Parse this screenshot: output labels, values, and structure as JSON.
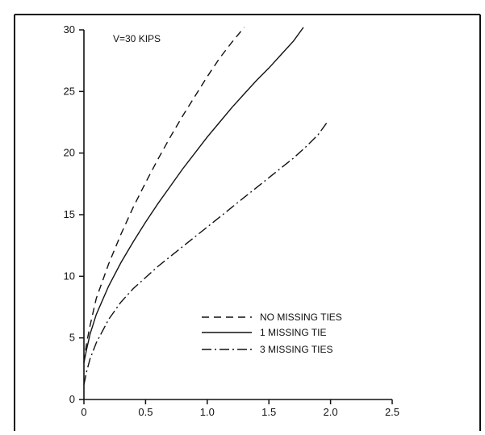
{
  "chart_data": {
    "type": "line",
    "title": "",
    "annotation": "V=30 KIPS",
    "xlabel": "",
    "ylabel": "",
    "xlim": [
      0,
      2.5
    ],
    "ylim": [
      0,
      30
    ],
    "x_ticks": [
      0,
      0.5,
      1.0,
      1.5,
      2.0,
      2.5
    ],
    "x_tick_labels": [
      "0",
      "0.5",
      "1.0",
      "1.5",
      "2.0",
      "2.5"
    ],
    "y_ticks": [
      0,
      5,
      10,
      15,
      20,
      25,
      30
    ],
    "y_tick_labels": [
      "0",
      "5",
      "10",
      "15",
      "20",
      "25",
      "30"
    ],
    "grid": false,
    "legend_position": "lower-right",
    "series": [
      {
        "name": "NO MISSING TIES",
        "style": "dashed",
        "x": [
          0,
          0.02,
          0.05,
          0.1,
          0.2,
          0.3,
          0.4,
          0.5,
          0.6,
          0.7,
          0.8,
          0.9,
          1.0,
          1.1,
          1.2,
          1.3
        ],
        "y": [
          3.0,
          4.5,
          6.0,
          8.2,
          11.0,
          13.4,
          15.6,
          17.6,
          19.5,
          21.3,
          23.0,
          24.6,
          26.2,
          27.7,
          29.0,
          30.2
        ]
      },
      {
        "name": "1 MISSING TIE",
        "style": "solid",
        "x": [
          0,
          0.02,
          0.05,
          0.1,
          0.2,
          0.3,
          0.4,
          0.5,
          0.6,
          0.7,
          0.8,
          0.9,
          1.0,
          1.1,
          1.2,
          1.3,
          1.4,
          1.5,
          1.6,
          1.7,
          1.78
        ],
        "y": [
          3.0,
          4.0,
          5.3,
          6.9,
          9.2,
          11.1,
          12.8,
          14.4,
          15.9,
          17.3,
          18.7,
          20.0,
          21.3,
          22.5,
          23.7,
          24.8,
          25.9,
          26.9,
          28.0,
          29.1,
          30.2
        ]
      },
      {
        "name": "3 MISSING TIES",
        "style": "dash-dot",
        "x": [
          0,
          0.02,
          0.05,
          0.1,
          0.2,
          0.3,
          0.4,
          0.5,
          0.6,
          0.7,
          0.8,
          0.9,
          1.0,
          1.1,
          1.2,
          1.3,
          1.4,
          1.5,
          1.6,
          1.7,
          1.8,
          1.9,
          1.98
        ],
        "y": [
          1.2,
          2.2,
          3.3,
          4.6,
          6.5,
          7.9,
          9.0,
          9.9,
          10.8,
          11.6,
          12.4,
          13.2,
          14.0,
          14.8,
          15.6,
          16.4,
          17.2,
          18.0,
          18.8,
          19.6,
          20.5,
          21.5,
          22.6
        ]
      }
    ]
  }
}
